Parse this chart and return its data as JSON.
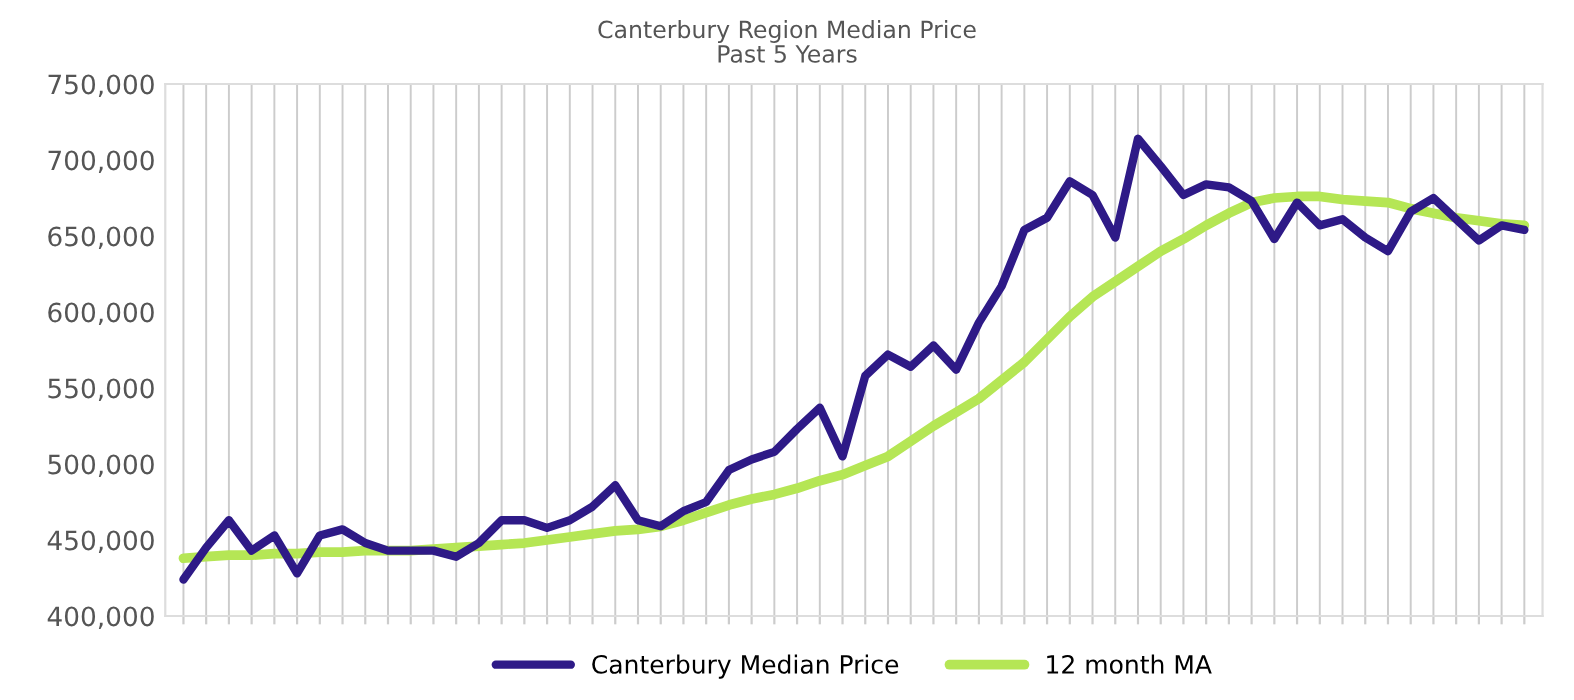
{
  "chart_data": {
    "type": "line",
    "title": "Canterbury Region Median Price",
    "subtitle": "Past 5 Years",
    "categories": [
      null,
      null,
      null,
      null,
      null,
      null,
      null,
      null,
      null,
      null,
      null,
      null,
      null,
      null,
      null,
      null,
      null,
      null,
      null,
      null,
      null,
      null,
      null,
      null,
      null,
      null,
      null,
      null,
      null,
      null,
      null,
      null,
      null,
      null,
      null,
      null,
      null,
      null,
      null,
      null,
      null,
      null,
      null,
      null,
      null,
      null,
      null,
      null,
      null,
      null,
      null,
      null,
      null,
      null,
      null,
      null,
      null,
      null,
      null,
      null
    ],
    "series": [
      {
        "name": "Canterbury Median Price",
        "color": "#2e1a87",
        "values": [
          424000,
          445000,
          463000,
          443000,
          453000,
          428000,
          453000,
          457000,
          448000,
          443000,
          443000,
          443000,
          439000,
          448000,
          463000,
          463000,
          458000,
          463000,
          472000,
          486000,
          463000,
          459000,
          469000,
          475000,
          496000,
          503000,
          508000,
          523000,
          537000,
          505000,
          558000,
          572000,
          564000,
          578000,
          562000,
          593000,
          617000,
          654000,
          662000,
          686000,
          677000,
          649000,
          714000,
          696000,
          677000,
          684000,
          682000,
          673000,
          648000,
          672000,
          657000,
          661000,
          649000,
          640000,
          666000,
          675000,
          661000,
          647000,
          657000,
          654000
        ]
      },
      {
        "name": "12 month MA",
        "color": "#b5e655",
        "values": [
          438000,
          439000,
          440000,
          440000,
          441000,
          441000,
          442000,
          442000,
          443000,
          443000,
          443000,
          444000,
          445000,
          446000,
          447000,
          448000,
          450000,
          452000,
          454000,
          456000,
          457000,
          459000,
          463000,
          468000,
          473000,
          477000,
          480000,
          484000,
          489000,
          493000,
          499000,
          505000,
          515000,
          525000,
          534000,
          543000,
          555000,
          567000,
          582000,
          597000,
          610000,
          620000,
          630000,
          640000,
          648000,
          657000,
          665000,
          672000,
          675000,
          676000,
          676000,
          674000,
          673000,
          672000,
          668000,
          665000,
          662000,
          660000,
          658000,
          657000
        ]
      }
    ],
    "ylim": [
      400000,
      750000
    ],
    "yticks": [
      {
        "value": 400000,
        "label": "400,000"
      },
      {
        "value": 450000,
        "label": "450,000"
      },
      {
        "value": 500000,
        "label": "500,000"
      },
      {
        "value": 550000,
        "label": "550,000"
      },
      {
        "value": 600000,
        "label": "600,000"
      },
      {
        "value": 650000,
        "label": "650,000"
      },
      {
        "value": 700000,
        "label": "700,000"
      },
      {
        "value": 750000,
        "label": "750,000"
      }
    ],
    "grid": "x",
    "legend": "bottom",
    "marker": "none",
    "line_style": "solid"
  }
}
